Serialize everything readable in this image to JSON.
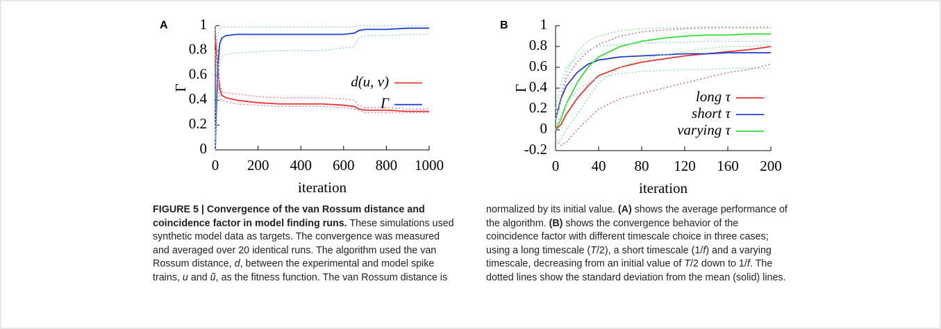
{
  "chart_data": [
    {
      "type": "line",
      "panel": "A",
      "ylabel": "Γ",
      "xlabel": "iteration",
      "legend": "center right",
      "xlim": [
        0,
        1000
      ],
      "xticks": [
        0,
        200,
        400,
        600,
        800,
        1000
      ],
      "ylim": [
        0,
        1
      ],
      "yticks": [
        0,
        0.2,
        0.4,
        0.6,
        0.8,
        1
      ],
      "x": [
        0,
        10,
        20,
        30,
        50,
        100,
        200,
        300,
        400,
        500,
        600,
        650,
        670,
        700,
        800,
        900,
        1000
      ],
      "series": [
        {
          "name": "d(u, v)",
          "color": "#e8312f",
          "style": "solid",
          "values": [
            0.9,
            0.7,
            0.5,
            0.44,
            0.42,
            0.4,
            0.38,
            0.37,
            0.37,
            0.37,
            0.36,
            0.35,
            0.33,
            0.32,
            0.32,
            0.31,
            0.31
          ]
        },
        {
          "name": "Γ",
          "color": "#1f3fd0",
          "style": "solid",
          "values": [
            0,
            0.6,
            0.85,
            0.9,
            0.92,
            0.93,
            0.93,
            0.93,
            0.93,
            0.93,
            0.93,
            0.94,
            0.96,
            0.97,
            0.97,
            0.98,
            0.98
          ]
        },
        {
          "color": "#f08a9a",
          "style": "dotted",
          "values": [
            1,
            0.75,
            0.55,
            0.47,
            0.46,
            0.45,
            0.43,
            0.42,
            0.42,
            0.42,
            0.41,
            0.4,
            0.36,
            0.34,
            0.34,
            0.33,
            0.33
          ]
        },
        {
          "color": "#f08a9a",
          "style": "dotted",
          "values": [
            0.8,
            0.55,
            0.42,
            0.4,
            0.39,
            0.37,
            0.36,
            0.35,
            0.35,
            0.35,
            0.34,
            0.33,
            0.32,
            0.3,
            0.3,
            0.3,
            0.3
          ]
        },
        {
          "color": "#9fd4ec",
          "style": "dotted",
          "values": [
            0.1,
            0.9,
            0.98,
            0.99,
            0.99,
            0.99,
            0.99,
            0.99,
            0.99,
            0.99,
            0.99,
            0.99,
            1,
            1,
            1,
            1,
            1
          ]
        },
        {
          "color": "#9fd4ec",
          "style": "dotted",
          "values": [
            0,
            0.4,
            0.7,
            0.75,
            0.77,
            0.78,
            0.79,
            0.8,
            0.8,
            0.8,
            0.82,
            0.83,
            0.9,
            0.92,
            0.92,
            0.93,
            0.93
          ]
        }
      ]
    },
    {
      "type": "line",
      "panel": "B",
      "ylabel": "Γ",
      "xlabel": "iteration",
      "legend": "lower right",
      "xlim": [
        0,
        200
      ],
      "xticks": [
        0,
        40,
        80,
        120,
        160,
        200
      ],
      "ylim": [
        -0.2,
        1
      ],
      "yticks": [
        -0.2,
        0,
        0.2,
        0.4,
        0.6,
        0.8,
        1
      ],
      "x": [
        0,
        5,
        10,
        20,
        30,
        40,
        60,
        80,
        100,
        120,
        140,
        160,
        180,
        200
      ],
      "series": [
        {
          "name": "long τ",
          "color": "#e8312f",
          "style": "solid",
          "values": [
            0,
            0.05,
            0.15,
            0.3,
            0.42,
            0.52,
            0.6,
            0.65,
            0.68,
            0.71,
            0.73,
            0.75,
            0.77,
            0.8
          ]
        },
        {
          "name": "short τ",
          "color": "#1f3fd0",
          "style": "solid",
          "values": [
            0.1,
            0.3,
            0.42,
            0.55,
            0.63,
            0.67,
            0.7,
            0.71,
            0.72,
            0.73,
            0.73,
            0.74,
            0.74,
            0.74
          ]
        },
        {
          "name": "varying τ",
          "color": "#33dd33",
          "style": "solid",
          "values": [
            0,
            0.1,
            0.25,
            0.45,
            0.6,
            0.7,
            0.8,
            0.85,
            0.88,
            0.9,
            0.91,
            0.91,
            0.92,
            0.92
          ]
        },
        {
          "color": "#c8709a",
          "style": "dotted",
          "values": [
            0.1,
            0.3,
            0.5,
            0.65,
            0.75,
            0.82,
            0.9,
            0.94,
            0.96,
            0.97,
            0.98,
            0.98,
            0.98,
            0.98
          ]
        },
        {
          "color": "#c8709a",
          "style": "dotted",
          "values": [
            -0.1,
            -0.15,
            -0.12,
            0,
            0.1,
            0.2,
            0.3,
            0.35,
            0.4,
            0.45,
            0.5,
            0.55,
            0.58,
            0.63
          ]
        },
        {
          "color": "#9fd4ec",
          "style": "dotted",
          "values": [
            0.2,
            0.45,
            0.6,
            0.7,
            0.77,
            0.8,
            0.82,
            0.83,
            0.84,
            0.84,
            0.85,
            0.85,
            0.85,
            0.85
          ]
        },
        {
          "color": "#9fd4ec",
          "style": "dotted",
          "values": [
            0,
            0.15,
            0.25,
            0.38,
            0.45,
            0.5,
            0.54,
            0.56,
            0.57,
            0.58,
            0.58,
            0.59,
            0.59,
            0.59
          ]
        },
        {
          "color": "#98e898",
          "style": "dotted",
          "values": [
            0.1,
            0.35,
            0.55,
            0.75,
            0.85,
            0.9,
            0.95,
            0.97,
            0.98,
            0.98,
            0.99,
            0.99,
            0.99,
            0.99
          ]
        },
        {
          "color": "#98e898",
          "style": "dotted",
          "values": [
            -0.1,
            -0.1,
            0,
            0.15,
            0.3,
            0.45,
            0.6,
            0.68,
            0.72,
            0.75,
            0.78,
            0.8,
            0.8,
            0.82
          ]
        }
      ]
    }
  ],
  "caption": {
    "segments": [
      {
        "text": "FIGURE 5 | Convergence of the van Rossum distance and coincidence factor in model finding runs.",
        "style": "bold"
      },
      {
        "text": " These simulations used synthetic model data as targets. The convergence was measured and averaged over 20 identical runs. The algorithm used the van Rossum distance, ",
        "style": "normal"
      },
      {
        "text": "d",
        "style": "italic"
      },
      {
        "text": ", between the experimental and model spike trains, ",
        "style": "normal"
      },
      {
        "text": "u",
        "style": "italic"
      },
      {
        "text": " and ",
        "style": "normal"
      },
      {
        "text": "ũ",
        "style": "italic"
      },
      {
        "text": ", as the fitness function. The van Rossum distance is normalized by its initial value. ",
        "style": "normal"
      },
      {
        "text": "(A)",
        "style": "bold"
      },
      {
        "text": " shows the average performance of the algorithm. ",
        "style": "normal"
      },
      {
        "text": "(B)",
        "style": "bold"
      },
      {
        "text": " shows the convergence behavior of the coincidence factor with different timescale choice in three cases; using a long timescale (",
        "style": "normal"
      },
      {
        "text": "T",
        "style": "italic"
      },
      {
        "text": "/2), a short timescale (1/",
        "style": "normal"
      },
      {
        "text": "f",
        "style": "italic"
      },
      {
        "text": ") and a varying timescale, decreasing from an initial value of ",
        "style": "normal"
      },
      {
        "text": "T",
        "style": "italic"
      },
      {
        "text": "/2 down to 1/",
        "style": "normal"
      },
      {
        "text": "f",
        "style": "italic"
      },
      {
        "text": ". The dotted lines show the standard deviation from the mean (solid) lines.",
        "style": "normal"
      }
    ]
  }
}
